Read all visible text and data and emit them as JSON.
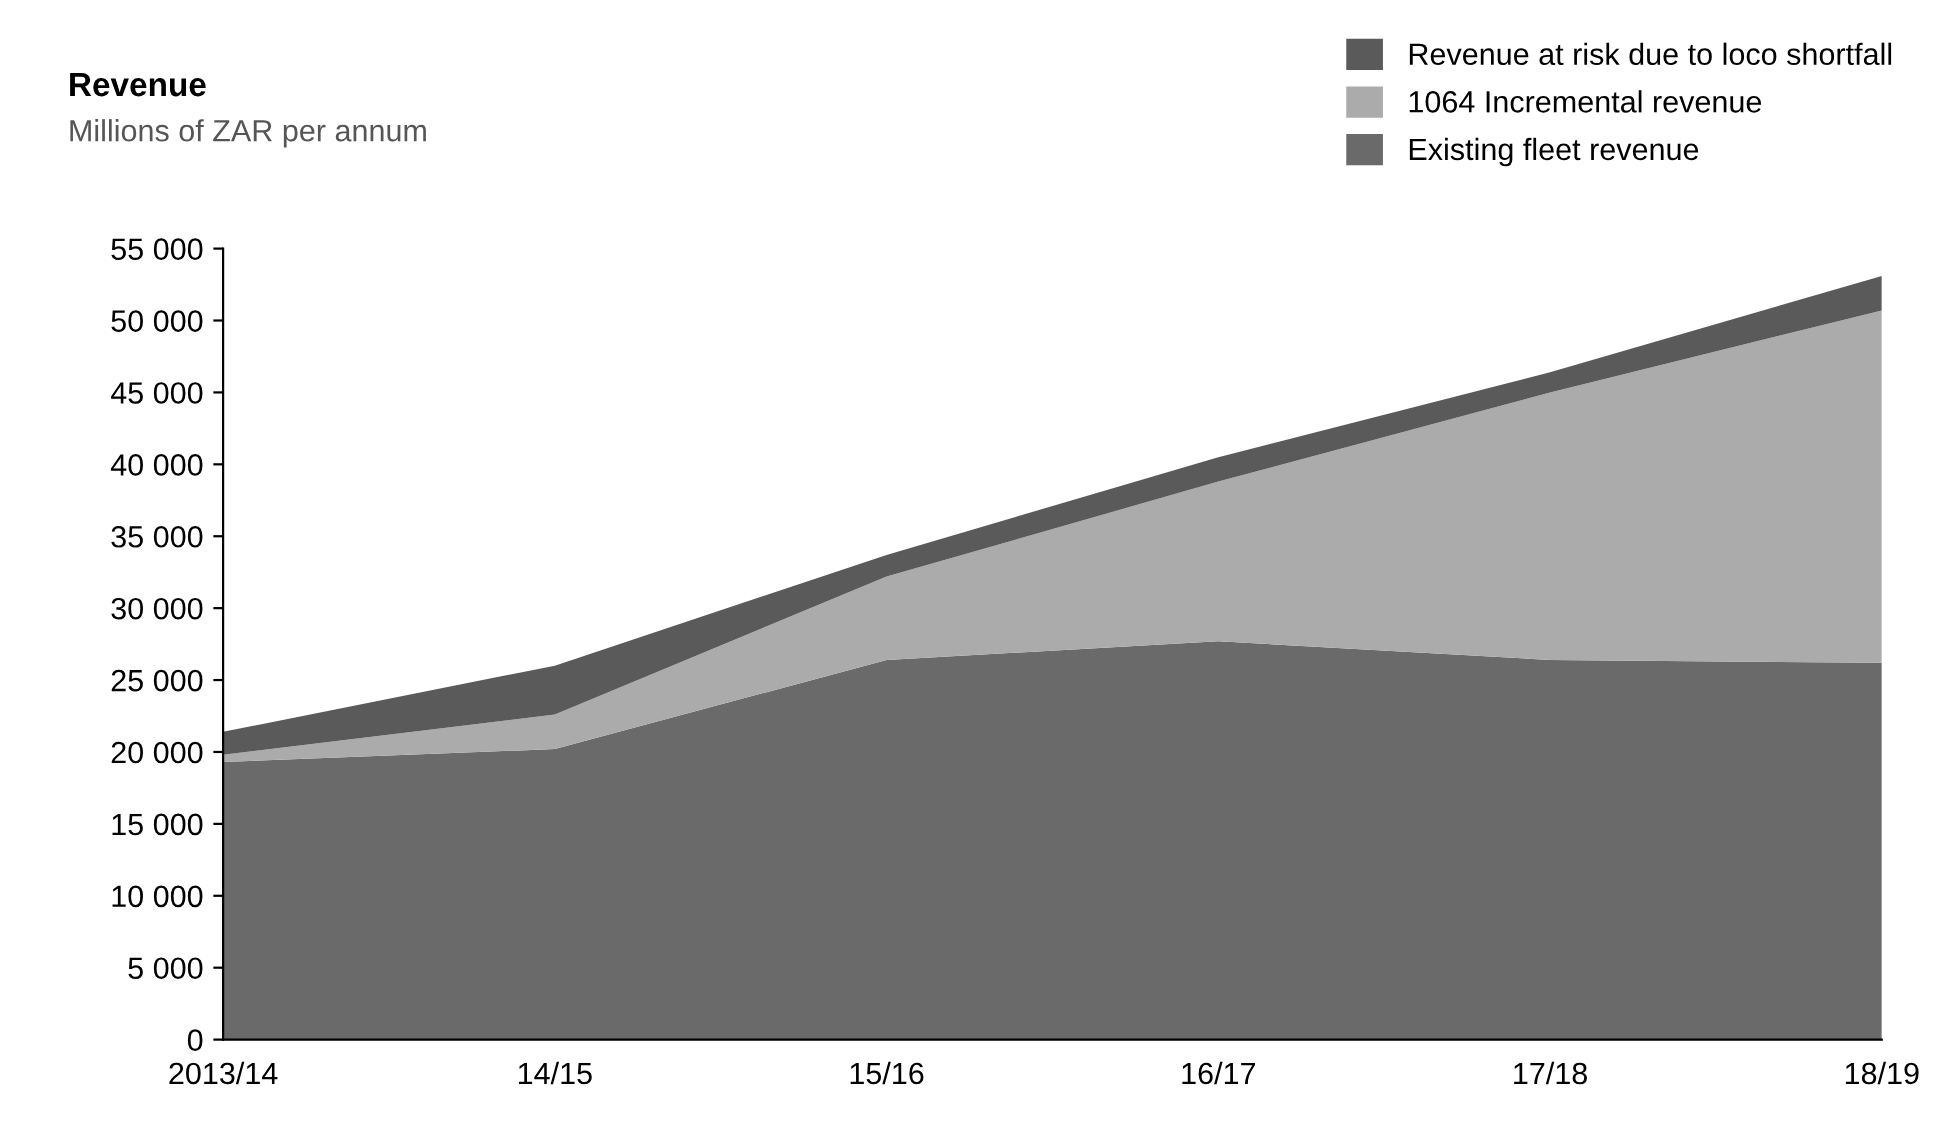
{
  "chart_data": {
    "type": "area",
    "stacked": true,
    "title": "Revenue",
    "subtitle": "Millions of ZAR per annum",
    "categories": [
      "2013/14",
      "14/15",
      "15/16",
      "16/17",
      "17/18",
      "18/19"
    ],
    "series": [
      {
        "name": "Existing fleet revenue",
        "color": "#6a6a6a",
        "values": [
          19300,
          20200,
          26400,
          27700,
          26400,
          26200
        ]
      },
      {
        "name": "1064 Incremental revenue",
        "color": "#ababab",
        "values": [
          500,
          2400,
          5800,
          11100,
          18600,
          24500
        ]
      },
      {
        "name": "Revenue at risk due to loco shortfall",
        "color": "#5a5a5a",
        "values": [
          1600,
          3400,
          1500,
          1700,
          1400,
          2400
        ]
      }
    ],
    "ylim": [
      0,
      55000
    ],
    "yticks": [
      0,
      {
        "value": 5000,
        "label": "5 000"
      },
      {
        "value": 10000,
        "label": "10 000"
      },
      {
        "value": 15000,
        "label": "15 000"
      },
      {
        "value": 20000,
        "label": "20 000"
      },
      {
        "value": 25000,
        "label": "25 000"
      },
      {
        "value": 30000,
        "label": "30 000"
      },
      {
        "value": 35000,
        "label": "35 000"
      },
      {
        "value": 40000,
        "label": "40 000"
      },
      {
        "value": 45000,
        "label": "45 000"
      },
      {
        "value": 50000,
        "label": "50 000"
      },
      {
        "value": 55000,
        "label": "55 000"
      }
    ],
    "grid": false,
    "legend": "top right"
  }
}
